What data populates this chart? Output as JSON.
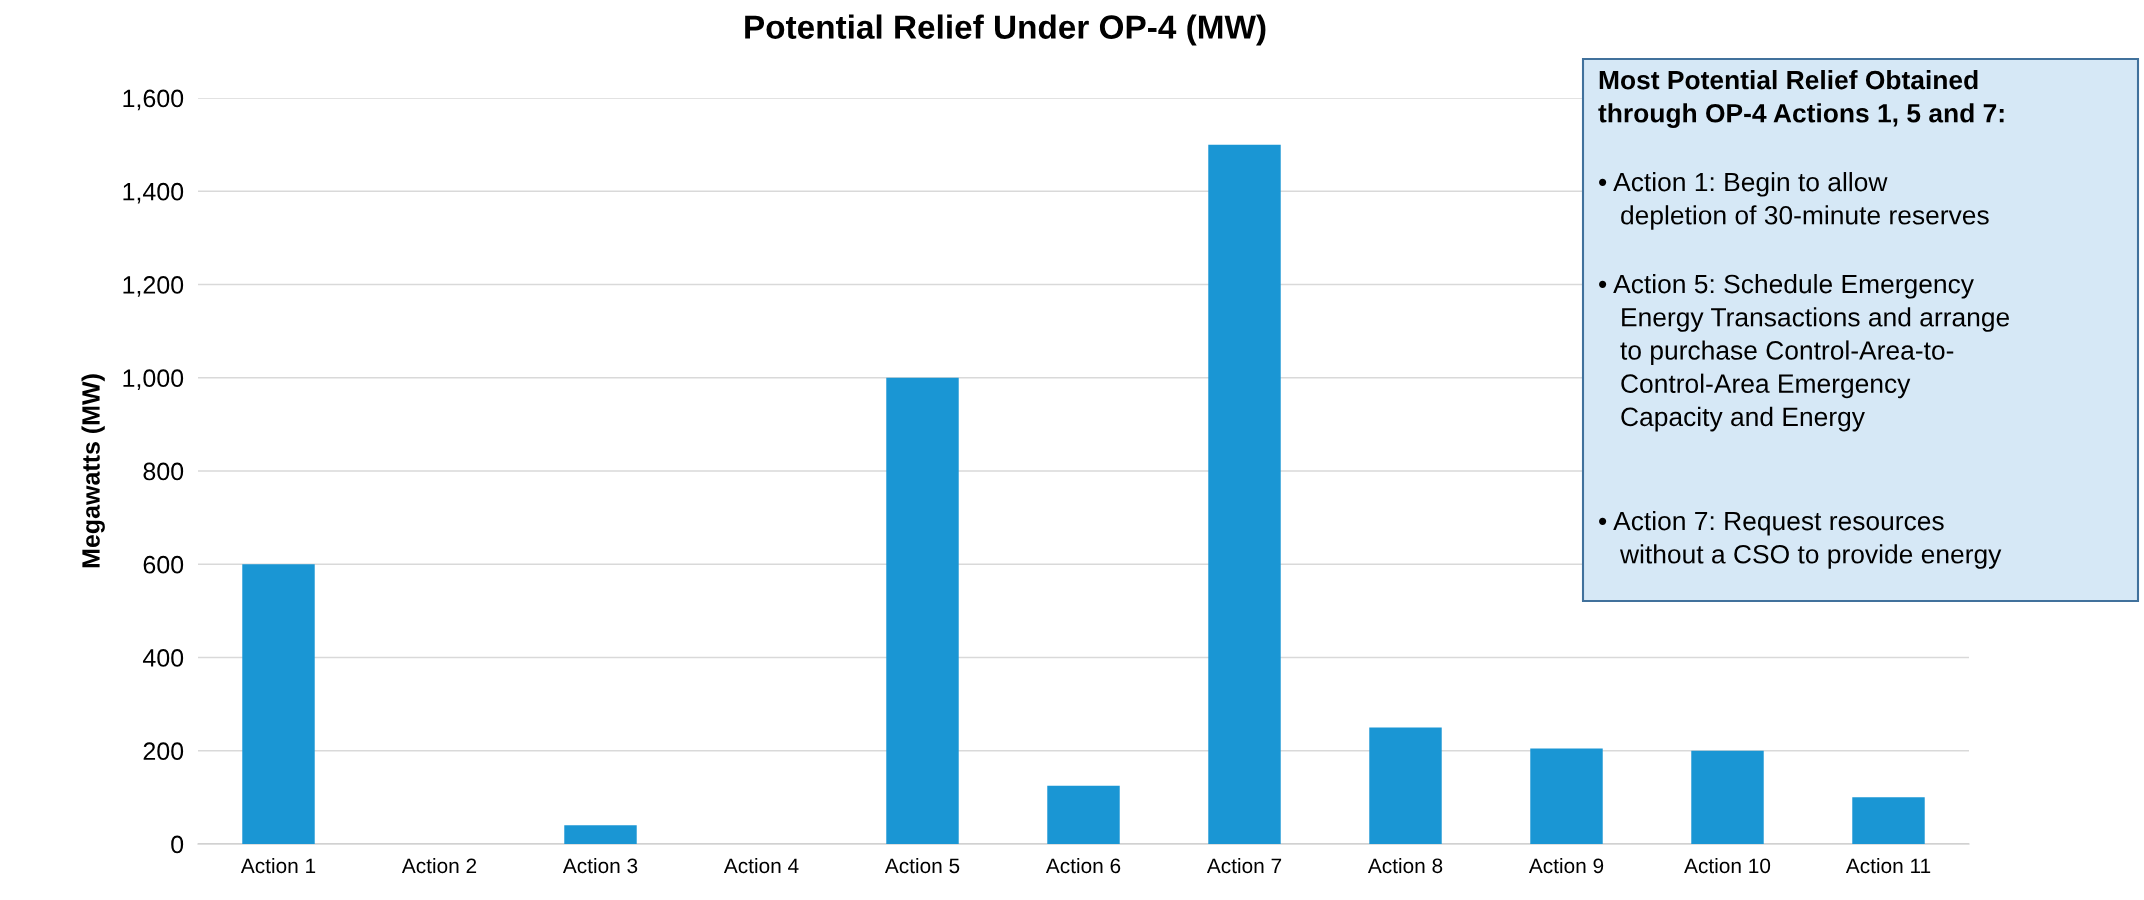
{
  "chart_data": {
    "type": "bar",
    "title": "Potential Relief Under OP-4 (MW)",
    "ylabel": "Megawatts (MW)",
    "categories": [
      "Action 1",
      "Action 2",
      "Action 3",
      "Action 4",
      "Action 5",
      "Action 6",
      "Action 7",
      "Action 8",
      "Action 9",
      "Action 10",
      "Action 11"
    ],
    "values": [
      600,
      0,
      40,
      0,
      1000,
      125,
      1500,
      250,
      205,
      200,
      100
    ],
    "color": "#1a96d4",
    "ylim": [
      0,
      1600
    ],
    "yticks": [
      0,
      200,
      400,
      600,
      800,
      {
        "value": 1000,
        "label": "1,000"
      },
      {
        "value": 1200,
        "label": "1,200"
      },
      {
        "value": 1400,
        "label": "1,400"
      },
      {
        "value": 1600,
        "label": "1,600"
      }
    ],
    "grid": "y",
    "annotations": [
      "Most Potential Relief Obtained\nthrough OP-4 Actions 1, 5 and 7:",
      "• Action 1: Begin to allow\n   depletion of 30-minute reserves",
      "• Action 5: Schedule Emergency\n   Energy Transactions and arrange\n   to purchase Control-Area-to-\n   Control-Area Emergency\n   Capacity and Energy",
      "• Action 7: Request resources\n   without a CSO to provide energy"
    ]
  }
}
